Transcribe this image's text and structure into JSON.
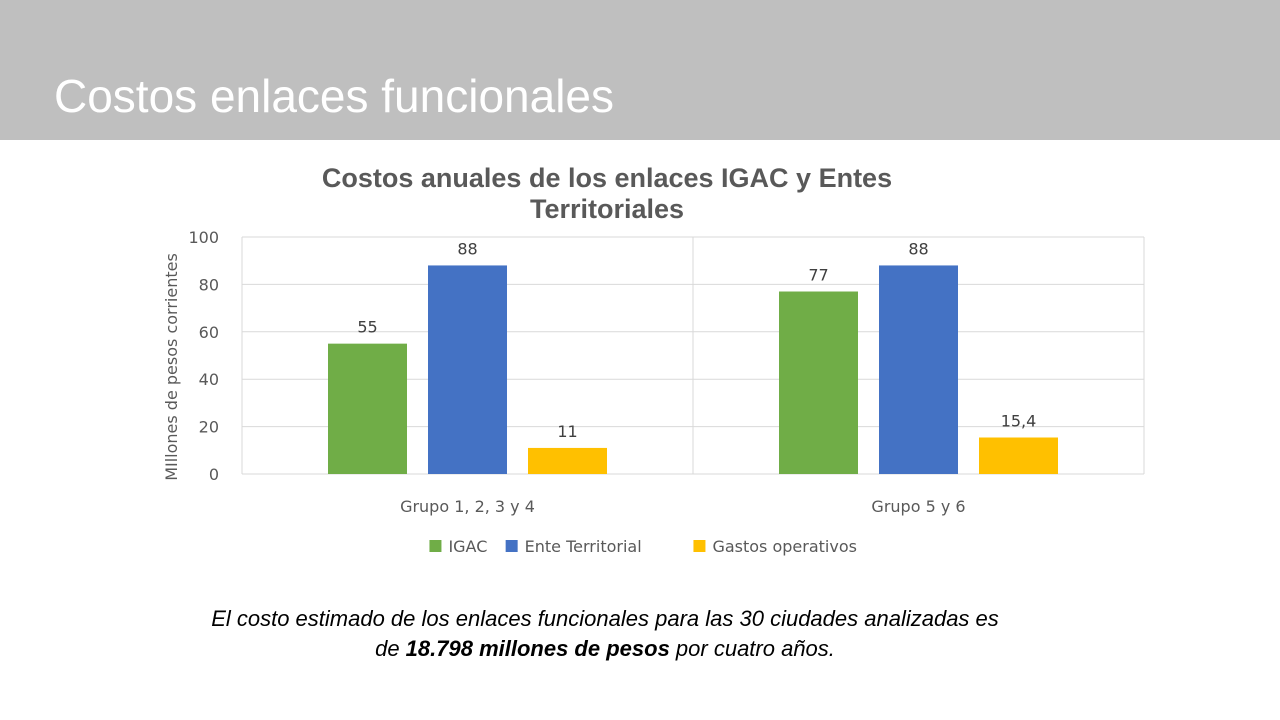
{
  "slide": {
    "title": "Costos enlaces funcionales",
    "caption": {
      "line1": "El costo estimado de los enlaces funcionales para las 30 ciudades analizadas es",
      "line2_prefix": "de ",
      "line2_bold": "18.798 millones de pesos",
      "line2_suffix": " por cuatro años."
    }
  },
  "chart_data": {
    "type": "bar",
    "title_lines": [
      "Costos anuales de los enlaces IGAC y Entes",
      "Territoriales"
    ],
    "xlabel": "",
    "ylabel": "MIllones de pesos corrientes",
    "ylim": [
      0,
      100
    ],
    "yticks": [
      0,
      20,
      40,
      60,
      80,
      100
    ],
    "grid": true,
    "legend_position": "bottom",
    "categories": [
      "Grupo 1, 2, 3 y 4",
      "Grupo 5 y 6"
    ],
    "series": [
      {
        "name": "IGAC",
        "color": "#70ad47",
        "values": [
          55,
          77
        ],
        "labels": [
          "55",
          "77"
        ]
      },
      {
        "name": "Ente Territorial",
        "color": "#4472c4",
        "values": [
          88,
          88
        ],
        "labels": [
          "88",
          "88"
        ]
      },
      {
        "name": "Gastos operativos",
        "color": "#ffc000",
        "values": [
          11,
          15.4
        ],
        "labels": [
          "11",
          "15,4"
        ]
      }
    ]
  },
  "colors": {
    "header_band": "#bfbfbf",
    "title_text": "#ffffff",
    "gridline": "#d9d9d9",
    "axis_text": "#595959"
  }
}
